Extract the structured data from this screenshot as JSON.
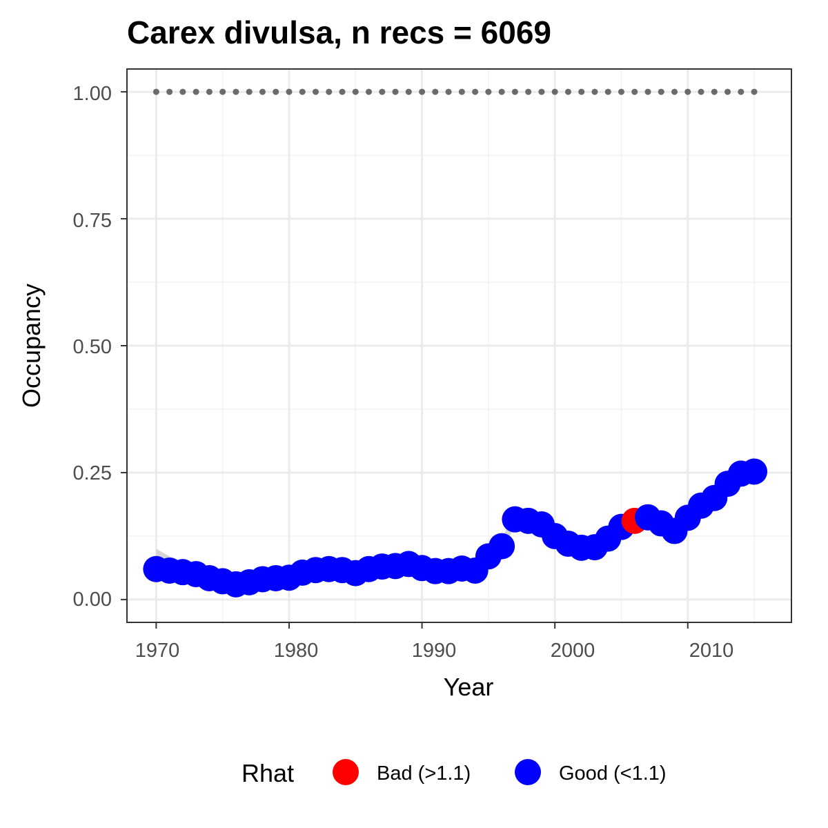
{
  "chart_data": {
    "type": "scatter",
    "title": "Carex divulsa, n recs = 6069",
    "xlabel": "Year",
    "ylabel": "Occupancy",
    "xlim": [
      1967.8,
      1971.0
    ],
    "x_ticks": [
      "1970",
      "1980",
      "1990",
      "2000",
      "2010"
    ],
    "y_ticks": [
      "0.00",
      "0.25",
      "0.50",
      "0.75",
      "1.00"
    ],
    "ylim": [
      -0.045,
      1.045
    ],
    "grid": true,
    "legend_position": "bottom",
    "legend": {
      "title": "Rhat",
      "entries": [
        {
          "label": "Bad (>1.1)",
          "color": "#ff0000"
        },
        {
          "label": "Good (<1.1)",
          "color": "#0000ff"
        }
      ]
    },
    "reference_line": {
      "y": 1.0,
      "style": "dotted",
      "color": "#6b6b6b"
    },
    "series": [
      {
        "x": [
          1970,
          1971,
          1972,
          1973,
          1974,
          1975,
          1976,
          1977,
          1978,
          1979,
          1980,
          1981,
          1982,
          1983,
          1984,
          1985,
          1986,
          1987,
          1988,
          1989,
          1990,
          1991,
          1992,
          1993,
          1994,
          1995,
          1996,
          1997,
          1998,
          1999,
          2000,
          2001,
          2002,
          2003,
          2004,
          2005,
          2006,
          2007,
          2008,
          2009,
          2010,
          2011,
          2012,
          2013,
          2014,
          2015
        ],
        "y": [
          0.06,
          0.057,
          0.054,
          0.05,
          0.042,
          0.036,
          0.03,
          0.034,
          0.04,
          0.042,
          0.043,
          0.053,
          0.058,
          0.06,
          0.058,
          0.052,
          0.06,
          0.065,
          0.066,
          0.07,
          0.062,
          0.056,
          0.056,
          0.061,
          0.057,
          0.085,
          0.105,
          0.158,
          0.155,
          0.148,
          0.125,
          0.11,
          0.102,
          0.103,
          0.12,
          0.143,
          0.155,
          0.162,
          0.15,
          0.135,
          0.161,
          0.185,
          0.2,
          0.228,
          0.248,
          0.252
        ],
        "rhat": [
          "good",
          "good",
          "good",
          "good",
          "good",
          "good",
          "good",
          "good",
          "good",
          "good",
          "good",
          "good",
          "good",
          "good",
          "good",
          "good",
          "good",
          "good",
          "good",
          "good",
          "good",
          "good",
          "good",
          "good",
          "good",
          "good",
          "good",
          "good",
          "good",
          "good",
          "good",
          "good",
          "good",
          "good",
          "good",
          "good",
          "bad",
          "good",
          "good",
          "good",
          "good",
          "good",
          "good",
          "good",
          "good",
          "good"
        ]
      }
    ],
    "ci_band": {
      "lower": [
        0.035,
        0.04,
        0.04,
        0.038,
        0.032,
        0.026,
        0.022,
        0.025,
        0.03,
        0.032,
        0.034,
        0.044,
        0.049,
        0.051,
        0.049,
        0.044,
        0.051,
        0.056,
        0.057,
        0.061,
        0.053,
        0.047,
        0.047,
        0.052,
        0.048,
        0.075,
        0.095,
        0.145,
        0.143,
        0.137,
        0.115,
        0.1,
        0.093,
        0.094,
        0.11,
        0.133,
        0.144,
        0.151,
        0.14,
        0.125,
        0.15,
        0.173,
        0.187,
        0.214,
        0.23,
        0.225
      ],
      "upper": [
        0.1,
        0.085,
        0.075,
        0.068,
        0.057,
        0.05,
        0.044,
        0.048,
        0.054,
        0.056,
        0.057,
        0.066,
        0.071,
        0.073,
        0.071,
        0.065,
        0.073,
        0.078,
        0.079,
        0.083,
        0.075,
        0.069,
        0.069,
        0.074,
        0.07,
        0.098,
        0.12,
        0.172,
        0.168,
        0.161,
        0.137,
        0.122,
        0.114,
        0.115,
        0.132,
        0.156,
        0.168,
        0.175,
        0.163,
        0.148,
        0.175,
        0.199,
        0.215,
        0.243,
        0.268,
        0.28
      ]
    },
    "colors": {
      "good": "#0000ff",
      "bad": "#ff0000",
      "ci": "#cccccc",
      "panel_border": "#333333",
      "grid": "#ebebeb"
    }
  }
}
